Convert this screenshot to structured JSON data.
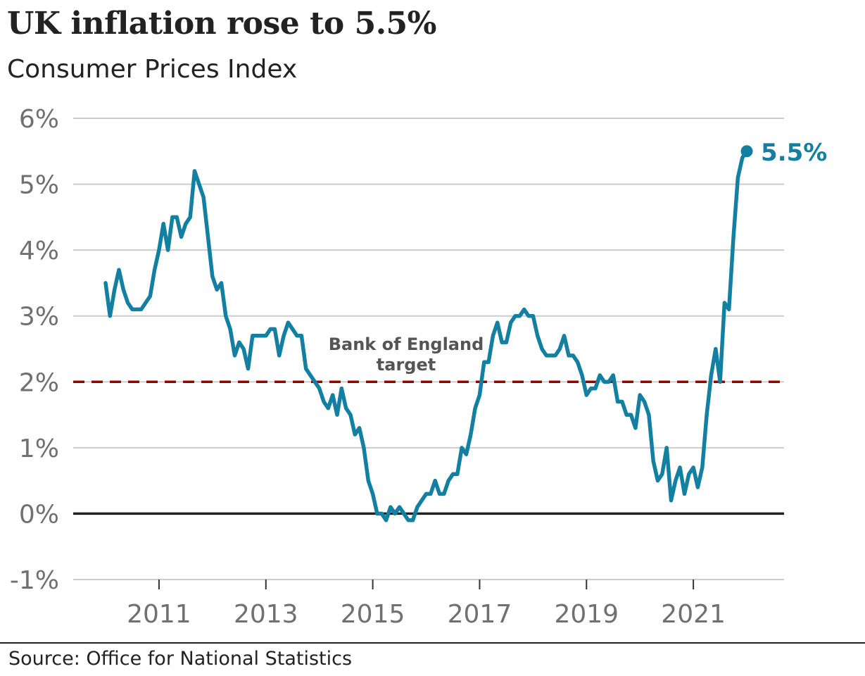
{
  "header": {
    "title": "UK inflation rose to 5.5%",
    "subtitle": "Consumer Prices Index"
  },
  "footer": {
    "source": "Source: Office for National Statistics"
  },
  "colors": {
    "series": "#1380a1",
    "target": "#990000",
    "grid": "#cccccc",
    "zero_line": "#222222",
    "tick_label": "#707070"
  },
  "chart_data": {
    "type": "line",
    "title": "UK inflation rose to 5.5%",
    "subtitle": "Consumer Prices Index",
    "xlabel": "",
    "ylabel": "",
    "ylim": [
      -1,
      6
    ],
    "xlim": [
      "2010-01",
      "2022-07"
    ],
    "y_ticks": [
      -1,
      0,
      1,
      2,
      3,
      4,
      5,
      6
    ],
    "y_tick_labels": [
      "-1%",
      "0%",
      "1%",
      "2%",
      "3%",
      "4%",
      "5%",
      "6%"
    ],
    "x_ticks": [
      "2011-01",
      "2013-01",
      "2015-01",
      "2017-01",
      "2019-01",
      "2021-01"
    ],
    "x_tick_labels": [
      "2011",
      "2013",
      "2015",
      "2017",
      "2019",
      "2021"
    ],
    "grid": true,
    "reference_line": {
      "value": 2,
      "label": "Bank of England target",
      "label_lines": [
        "Bank of England",
        "target"
      ]
    },
    "end_label": "5.5%",
    "series": [
      {
        "x": [
          "2010-01",
          "2010-02",
          "2010-03",
          "2010-04",
          "2010-05",
          "2010-06",
          "2010-07",
          "2010-08",
          "2010-09",
          "2010-10",
          "2010-11",
          "2010-12",
          "2011-01",
          "2011-02",
          "2011-03",
          "2011-04",
          "2011-05",
          "2011-06",
          "2011-07",
          "2011-08",
          "2011-09",
          "2011-10",
          "2011-11",
          "2011-12",
          "2012-01",
          "2012-02",
          "2012-03",
          "2012-04",
          "2012-05",
          "2012-06",
          "2012-07",
          "2012-08",
          "2012-09",
          "2012-10",
          "2012-11",
          "2012-12",
          "2013-01",
          "2013-02",
          "2013-03",
          "2013-04",
          "2013-05",
          "2013-06",
          "2013-07",
          "2013-08",
          "2013-09",
          "2013-10",
          "2013-11",
          "2013-12",
          "2014-01",
          "2014-02",
          "2014-03",
          "2014-04",
          "2014-05",
          "2014-06",
          "2014-07",
          "2014-08",
          "2014-09",
          "2014-10",
          "2014-11",
          "2014-12",
          "2015-01",
          "2015-02",
          "2015-03",
          "2015-04",
          "2015-05",
          "2015-06",
          "2015-07",
          "2015-08",
          "2015-09",
          "2015-10",
          "2015-11",
          "2015-12",
          "2016-01",
          "2016-02",
          "2016-03",
          "2016-04",
          "2016-05",
          "2016-06",
          "2016-07",
          "2016-08",
          "2016-09",
          "2016-10",
          "2016-11",
          "2016-12",
          "2017-01",
          "2017-02",
          "2017-03",
          "2017-04",
          "2017-05",
          "2017-06",
          "2017-07",
          "2017-08",
          "2017-09",
          "2017-10",
          "2017-11",
          "2017-12",
          "2018-01",
          "2018-02",
          "2018-03",
          "2018-04",
          "2018-05",
          "2018-06",
          "2018-07",
          "2018-08",
          "2018-09",
          "2018-10",
          "2018-11",
          "2018-12",
          "2019-01",
          "2019-02",
          "2019-03",
          "2019-04",
          "2019-05",
          "2019-06",
          "2019-07",
          "2019-08",
          "2019-09",
          "2019-10",
          "2019-11",
          "2019-12",
          "2020-01",
          "2020-02",
          "2020-03",
          "2020-04",
          "2020-05",
          "2020-06",
          "2020-07",
          "2020-08",
          "2020-09",
          "2020-10",
          "2020-11",
          "2020-12",
          "2021-01",
          "2021-02",
          "2021-03",
          "2021-04",
          "2021-05",
          "2021-06",
          "2021-07",
          "2021-08",
          "2021-09",
          "2021-10",
          "2021-11",
          "2021-12",
          "2022-01"
        ],
        "y": [
          3.5,
          3.0,
          3.4,
          3.7,
          3.4,
          3.2,
          3.1,
          3.1,
          3.1,
          3.2,
          3.3,
          3.7,
          4.0,
          4.4,
          4.0,
          4.5,
          4.5,
          4.2,
          4.4,
          4.5,
          5.2,
          5.0,
          4.8,
          4.2,
          3.6,
          3.4,
          3.5,
          3.0,
          2.8,
          2.4,
          2.6,
          2.5,
          2.2,
          2.7,
          2.7,
          2.7,
          2.7,
          2.8,
          2.8,
          2.4,
          2.7,
          2.9,
          2.8,
          2.7,
          2.7,
          2.2,
          2.1,
          2.0,
          1.9,
          1.7,
          1.6,
          1.8,
          1.5,
          1.9,
          1.6,
          1.5,
          1.2,
          1.3,
          1.0,
          0.5,
          0.3,
          0.0,
          0.0,
          -0.1,
          0.1,
          0.0,
          0.1,
          0.0,
          -0.1,
          -0.1,
          0.1,
          0.2,
          0.3,
          0.3,
          0.5,
          0.3,
          0.3,
          0.5,
          0.6,
          0.6,
          1.0,
          0.9,
          1.2,
          1.6,
          1.8,
          2.3,
          2.3,
          2.7,
          2.9,
          2.6,
          2.6,
          2.9,
          3.0,
          3.0,
          3.1,
          3.0,
          3.0,
          2.7,
          2.5,
          2.4,
          2.4,
          2.4,
          2.5,
          2.7,
          2.4,
          2.4,
          2.3,
          2.1,
          1.8,
          1.9,
          1.9,
          2.1,
          2.0,
          2.0,
          2.1,
          1.7,
          1.7,
          1.5,
          1.5,
          1.3,
          1.8,
          1.7,
          1.5,
          0.8,
          0.5,
          0.6,
          1.0,
          0.2,
          0.5,
          0.7,
          0.3,
          0.6,
          0.7,
          0.4,
          0.7,
          1.5,
          2.1,
          2.5,
          2.0,
          3.2,
          3.1,
          4.2,
          5.1,
          5.4,
          5.5
        ]
      }
    ]
  }
}
